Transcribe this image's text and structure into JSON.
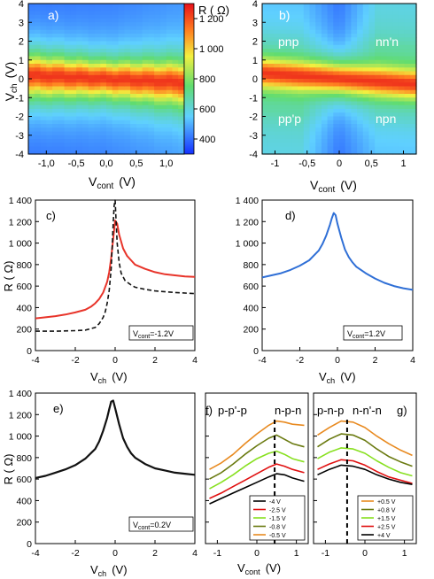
{
  "colors": {
    "heat_low": "#1e3cff",
    "heat_high": "#e8101a",
    "red": "#e8342a",
    "blue": "#2f6fd6",
    "black": "#111111",
    "traces_f": [
      "#000000",
      "#e01010",
      "#88e020",
      "#6a7a10",
      "#e88a20"
    ],
    "traces_g": [
      "#e88a20",
      "#6a7a10",
      "#88e020",
      "#e01010",
      "#000000"
    ]
  },
  "panels": {
    "a": {
      "tag": "a)",
      "xlabel": "V",
      "xlabel_sub": "cont",
      "xlabel_unit": "(V)",
      "ylabel": "V",
      "ylabel_sub": "ch",
      "ylabel_unit": "(V)",
      "xticks": [
        "-1,0",
        "-0,5",
        "0,0",
        "0,5",
        "1,0"
      ],
      "yticks": [
        "4",
        "3",
        "2",
        "1",
        "0",
        "-1",
        "-2",
        "-3",
        "-4"
      ]
    },
    "colorbar": {
      "title": "R (  Ω)",
      "ticks": [
        "1 200",
        "1 000",
        "800",
        "600",
        "400"
      ]
    },
    "b": {
      "tag": "b)",
      "xlabel": "V",
      "xlabel_sub": "cont",
      "xlabel_unit": "(V)",
      "xticks": [
        "-1",
        "-0,5",
        "0",
        "0,5",
        "1"
      ],
      "yticks": [
        "4",
        "3",
        "2",
        "1",
        "0",
        "-1",
        "-2",
        "-3",
        "-4"
      ],
      "regions": [
        "pnp",
        "nn'n",
        "pp'p",
        "npn"
      ]
    },
    "c": {
      "tag": "c)",
      "legend": "V",
      "legend_sub": "cont",
      "legend_val": "=-1.2V",
      "ylabel": "R (  Ω)"
    },
    "d": {
      "tag": "d)",
      "legend": "V",
      "legend_sub": "cont",
      "legend_val": "=1.2V"
    },
    "e": {
      "tag": "e)",
      "legend": "V",
      "legend_sub": "cont",
      "legend_val": "=0.2V",
      "ylabel": "R (  Ω)"
    },
    "f": {
      "tag": "f)",
      "left_label": "p-p'-p",
      "right_label": "n-p-n",
      "xlabel": "V",
      "xlabel_sub": "cont",
      "xlabel_unit": "(V)",
      "xticks": [
        "-1",
        "0",
        "1"
      ],
      "legend": [
        "-4 V",
        "-2.5 V",
        "-1.5 V",
        "-0.8 V",
        "-0.5 V"
      ]
    },
    "g": {
      "tag": "g)",
      "left_label": "p-n-p",
      "right_label": "n-n'-n",
      "xticks": [
        "-1",
        "0",
        "1"
      ],
      "legend": [
        "+0.5 V",
        "+0.8 V",
        "+1.5 V",
        "+2.5 V",
        "+4 V"
      ]
    },
    "vch": {
      "xlabel": "V",
      "xlabel_sub": "ch",
      "xlabel_unit": "(V)"
    },
    "r_ticks": [
      "1 400",
      "1 200",
      "1 000",
      "800",
      "600",
      "400",
      "200",
      "0"
    ],
    "vch_ticks": [
      "-4",
      "-2",
      "0",
      "2",
      "4"
    ]
  },
  "chart_data": [
    {
      "type": "heatmap",
      "panel": "a",
      "x_range": [
        -1.3,
        1.3
      ],
      "y_range": [
        -4,
        4
      ],
      "z_range": [
        300,
        1300
      ],
      "xlabel": "Vcont (V)",
      "ylabel": "Vch (V)",
      "colorbar_label": "R ( Ω)"
    },
    {
      "type": "heatmap",
      "panel": "b",
      "x_range": [
        -1.2,
        1.2
      ],
      "y_range": [
        -4,
        4
      ],
      "z_range": [
        300,
        1300
      ],
      "xlabel": "Vcont (V)",
      "annotations": [
        "pnp",
        "nn'n",
        "pp'p",
        "npn"
      ]
    },
    {
      "type": "line",
      "panel": "c",
      "xlabel": "Vch (V)",
      "ylabel": "R ( Ω)",
      "xlim": [
        -4,
        4
      ],
      "ylim": [
        0,
        1400
      ],
      "series": [
        {
          "name": "red",
          "x": [
            -4,
            -3.5,
            -3,
            -2.5,
            -2,
            -1.5,
            -1.2,
            -1,
            -0.8,
            -0.6,
            -0.4,
            -0.3,
            -0.2,
            -0.1,
            0,
            0.1,
            0.2,
            0.4,
            0.6,
            0.8,
            1,
            1.5,
            2,
            2.5,
            3,
            3.5,
            4
          ],
          "y": [
            300,
            310,
            320,
            335,
            355,
            380,
            410,
            440,
            480,
            540,
            640,
            730,
            860,
            1040,
            1210,
            1180,
            1080,
            950,
            880,
            840,
            800,
            760,
            730,
            710,
            700,
            690,
            685
          ]
        },
        {
          "name": "dashed",
          "x": [
            -4,
            -3,
            -2,
            -1.5,
            -1,
            -0.8,
            -0.6,
            -0.5,
            -0.4,
            -0.3,
            -0.2,
            -0.15,
            -0.1,
            -0.05,
            0,
            0.05,
            0.1,
            0.2,
            0.3,
            0.5,
            0.8,
            1,
            1.5,
            2,
            3,
            4
          ],
          "y": [
            180,
            180,
            185,
            190,
            215,
            250,
            310,
            360,
            440,
            560,
            760,
            950,
            1180,
            1350,
            1400,
            1200,
            1000,
            820,
            720,
            650,
            610,
            590,
            570,
            555,
            540,
            530
          ]
        }
      ]
    },
    {
      "type": "line",
      "panel": "d",
      "xlim": [
        -4,
        4
      ],
      "ylim": [
        0,
        1400
      ],
      "series": [
        {
          "name": "blue",
          "x": [
            -4,
            -3.5,
            -3,
            -2.5,
            -2,
            -1.5,
            -1,
            -0.8,
            -0.6,
            -0.4,
            -0.3,
            -0.2,
            -0.1,
            0,
            0.2,
            0.4,
            0.6,
            0.8,
            1,
            1.5,
            2,
            2.5,
            3,
            3.5,
            4
          ],
          "y": [
            680,
            700,
            720,
            750,
            790,
            840,
            930,
            990,
            1070,
            1170,
            1230,
            1280,
            1260,
            1180,
            1050,
            940,
            870,
            820,
            780,
            720,
            670,
            630,
            600,
            580,
            565
          ]
        }
      ]
    },
    {
      "type": "line",
      "panel": "e",
      "xlabel": "Vch (V)",
      "ylabel": "R ( Ω)",
      "xlim": [
        -4,
        4
      ],
      "ylim": [
        0,
        1400
      ],
      "series": [
        {
          "name": "black",
          "x": [
            -4,
            -3.5,
            -3,
            -2.5,
            -2,
            -1.5,
            -1,
            -0.8,
            -0.6,
            -0.4,
            -0.3,
            -0.2,
            -0.1,
            0,
            0.2,
            0.4,
            0.6,
            0.8,
            1,
            1.5,
            2,
            2.5,
            3,
            3.5,
            4
          ],
          "y": [
            610,
            630,
            660,
            690,
            730,
            790,
            880,
            950,
            1050,
            1170,
            1250,
            1320,
            1330,
            1260,
            1110,
            980,
            900,
            840,
            800,
            740,
            700,
            680,
            660,
            650,
            640
          ]
        }
      ]
    },
    {
      "type": "line",
      "panel": "f",
      "xlabel": "Vcont (V)",
      "xlim": [
        -1.3,
        1.3
      ],
      "ylim": [
        0,
        1400
      ],
      "x": [
        -1.2,
        -0.9,
        -0.6,
        -0.3,
        0,
        0.3,
        0.5,
        0.7,
        0.9,
        1.2
      ],
      "series": [
        {
          "name": "-4 V",
          "y": [
            370,
            420,
            470,
            520,
            570,
            620,
            650,
            640,
            610,
            580
          ]
        },
        {
          "name": "-2.5 V",
          "y": [
            420,
            470,
            530,
            590,
            650,
            710,
            740,
            720,
            690,
            660
          ]
        },
        {
          "name": "-1.5 V",
          "y": [
            510,
            570,
            640,
            720,
            790,
            840,
            860,
            830,
            790,
            760
          ]
        },
        {
          "name": "-0.8 V",
          "y": [
            600,
            660,
            740,
            830,
            910,
            980,
            1010,
            970,
            930,
            900
          ]
        },
        {
          "name": "-0.5 V",
          "y": [
            690,
            750,
            830,
            930,
            1020,
            1100,
            1140,
            1130,
            1110,
            1100
          ]
        }
      ]
    },
    {
      "type": "line",
      "panel": "g",
      "xlim": [
        -1.3,
        1.3
      ],
      "ylim": [
        0,
        1400
      ],
      "x": [
        -1.2,
        -0.9,
        -0.6,
        -0.3,
        0,
        0.3,
        0.6,
        0.9,
        1.2
      ],
      "series": [
        {
          "name": "+0.5 V",
          "y": [
            1010,
            1080,
            1140,
            1130,
            1080,
            1000,
            930,
            870,
            820
          ]
        },
        {
          "name": "+0.8 V",
          "y": [
            900,
            970,
            1020,
            1010,
            960,
            880,
            810,
            760,
            720
          ]
        },
        {
          "name": "+1.5 V",
          "y": [
            790,
            850,
            890,
            880,
            840,
            770,
            710,
            660,
            630
          ]
        },
        {
          "name": "+2.5 V",
          "y": [
            690,
            740,
            780,
            770,
            730,
            670,
            620,
            590,
            560
          ]
        },
        {
          "name": "+4 V",
          "y": [
            640,
            690,
            730,
            720,
            690,
            640,
            600,
            570,
            550
          ]
        }
      ]
    }
  ]
}
